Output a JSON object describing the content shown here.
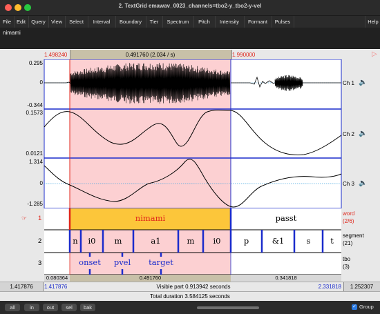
{
  "window": {
    "title": "2. TextGrid emawav_0023_channels=tbo2-y_tbo2-y-vel",
    "help": "Help"
  },
  "menu": [
    "File",
    "Edit",
    "Query",
    "View",
    "Select",
    "Interval",
    "Boundary",
    "Tier",
    "Spectrum",
    "Pitch",
    "Intensity",
    "Formant",
    "Pulses"
  ],
  "name_field": "nimami",
  "selection": {
    "start": "1.498240",
    "duration": "0.491760 (2.034 / s)",
    "end": "1.990000"
  },
  "channels": [
    {
      "label": "Ch 1",
      "top_value": "0.295",
      "zero": "0",
      "bottom_value": "-0.344"
    },
    {
      "label": "Ch 2",
      "top_value": "0.1573",
      "bottom_value": "0.0121"
    },
    {
      "label": "Ch 3",
      "top_value": "1.314",
      "zero": "0",
      "bottom_value": "-1.285"
    }
  ],
  "tiers": [
    {
      "number": "1",
      "name": "word",
      "count": "(2/6)",
      "marker": "☞"
    },
    {
      "number": "2",
      "name": "segment",
      "count": "(21)"
    },
    {
      "number": "3",
      "name": "tbo",
      "count": "(3)"
    }
  ],
  "word_intervals": [
    "nimami",
    "passt"
  ],
  "segment_intervals": [
    "n",
    "i0",
    "m",
    "a1",
    "m",
    "i0",
    "p",
    "&1",
    "s",
    "t"
  ],
  "tbo_points": [
    "onset",
    "pvel",
    "target"
  ],
  "durations_row": {
    "left": "0.080364",
    "selected": "0.491760",
    "right": "0.341818"
  },
  "visible_row": {
    "left_total": "1.417876",
    "left_window": "1.417876",
    "center": "Visible part 0.913942 seconds",
    "right_window": "2.331818",
    "right_total": "1.252307"
  },
  "total_row": "Total duration 3.584125 seconds",
  "bottom_buttons": [
    "all",
    "in",
    "out",
    "sel",
    "bak"
  ],
  "group_checkbox": {
    "label": "Group",
    "checked": true
  },
  "colors": {
    "selection": "#fcd0d2",
    "interval_highlight": "#fcc63a",
    "boundary": "#1a2bcc",
    "cursor": "#e0261b"
  }
}
